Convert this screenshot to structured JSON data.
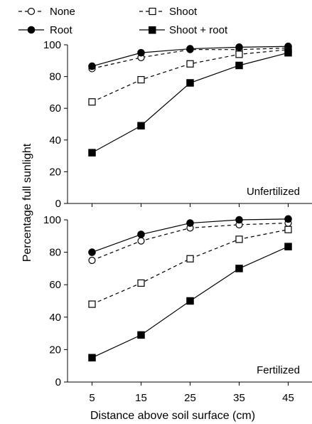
{
  "chart_data": {
    "type": "line",
    "xlabel": "Distance above soil surface (cm)",
    "ylabel": "Percentage full sunlight",
    "x": [
      5,
      15,
      25,
      35,
      45
    ],
    "xlim": [
      0,
      50
    ],
    "ylim": [
      0,
      100
    ],
    "yticks": [
      0,
      20,
      40,
      60,
      80,
      100
    ],
    "grid": false,
    "legend_placement": "top",
    "legend": [
      {
        "name": "None",
        "marker": "open-circle",
        "line": "dashed"
      },
      {
        "name": "Shoot",
        "marker": "open-square",
        "line": "dashed"
      },
      {
        "name": "Root",
        "marker": "filled-circle",
        "line": "solid"
      },
      {
        "name": "Shoot + root",
        "marker": "filled-square",
        "line": "solid"
      }
    ],
    "panels": [
      {
        "annotation": "Unfertilized",
        "series": [
          {
            "name": "None",
            "values": [
              85,
              92,
              97,
              97,
              98
            ]
          },
          {
            "name": "Shoot",
            "values": [
              64,
              78,
              88,
              94,
              97
            ]
          },
          {
            "name": "Root",
            "values": [
              86.5,
              95,
              97.5,
              98.5,
              99
            ]
          },
          {
            "name": "Shoot + root",
            "values": [
              32,
              49,
              76,
              87,
              95
            ]
          }
        ]
      },
      {
        "annotation": "Fertilized",
        "series": [
          {
            "name": "None",
            "values": [
              75,
              87,
              95,
              97,
              98
            ]
          },
          {
            "name": "Shoot",
            "values": [
              48,
              61,
              76,
              88,
              94
            ]
          },
          {
            "name": "Root",
            "values": [
              80,
              91,
              98,
              100,
              100.5
            ]
          },
          {
            "name": "Shoot + root",
            "values": [
              15,
              29,
              50,
              70,
              83.5
            ]
          }
        ]
      }
    ]
  }
}
